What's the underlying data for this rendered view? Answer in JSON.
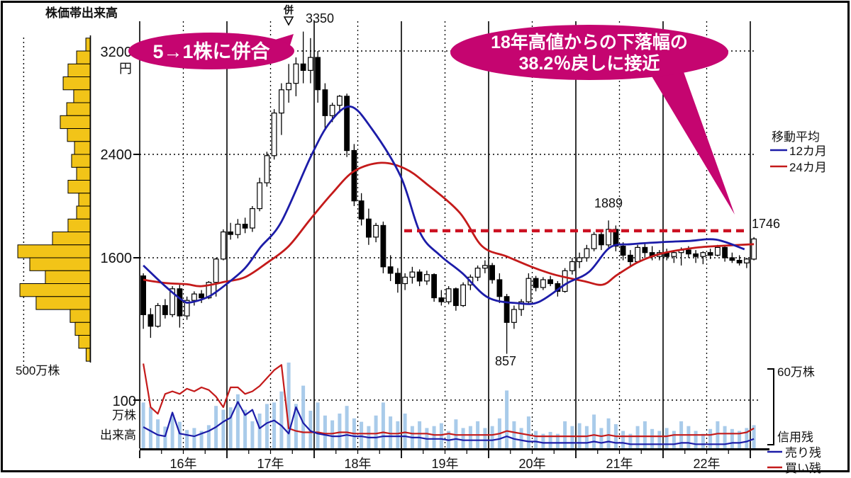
{
  "header": {
    "histogram_title": "株価帯出来高",
    "histogram_scale_label": "500万株"
  },
  "price_axis": {
    "label_3200": "3200",
    "unit": "円",
    "label_2400": "2400",
    "label_1600": "1600"
  },
  "callouts": {
    "merger": "5→1株に併合",
    "merger_marker": "併",
    "retrace_line1": "18年高値からの下落幅の",
    "retrace_line2": "38.2％戻しに接近"
  },
  "point_labels": {
    "high": "3350",
    "interim_high": "1889",
    "last": "1746",
    "low": "857"
  },
  "ma_legend": {
    "title": "移動平均",
    "ma12": "12カ月",
    "ma24": "24カ月"
  },
  "volume_labels": {
    "scale_value": "100",
    "scale_unit": "万株",
    "series": "出来高"
  },
  "margin_legend": {
    "scale": "60万株",
    "title": "信用残",
    "sell": "売り残",
    "buy": "買い残"
  },
  "x_axis": {
    "years": [
      "16年",
      "17年",
      "18年",
      "19年",
      "20年",
      "21年",
      "22年"
    ]
  },
  "chart_data": {
    "type": "candlestick+volume",
    "period": "monthly",
    "start_month": "2016-01",
    "end_month": "2023-01",
    "price_unit": "円",
    "price_gridlines": [
      3200,
      2400,
      1600
    ],
    "notable_points": {
      "high": {
        "month": "2017-11",
        "price": 3350
      },
      "low": {
        "month": "2020-03",
        "price": 857
      },
      "interim_high": {
        "month": "2021-05",
        "price": 1889
      },
      "last_close": {
        "price": 1746
      }
    },
    "merger_event": {
      "month": "2017-09",
      "label": "併",
      "note": "5→1株に併合"
    },
    "retracement_line": {
      "price": 1809,
      "note": "38.2%戻し (857 + 0.382 × (3350 − 857))"
    },
    "candles_ohlc": [
      [
        1460,
        1480,
        1050,
        1160
      ],
      [
        1160,
        1210,
        980,
        1070
      ],
      [
        1070,
        1250,
        1060,
        1230
      ],
      [
        1230,
        1280,
        1130,
        1160
      ],
      [
        1160,
        1380,
        1140,
        1360
      ],
      [
        1360,
        1390,
        1060,
        1150
      ],
      [
        1150,
        1300,
        1120,
        1270
      ],
      [
        1270,
        1340,
        1230,
        1320
      ],
      [
        1320,
        1350,
        1250,
        1290
      ],
      [
        1290,
        1420,
        1280,
        1410
      ],
      [
        1410,
        1600,
        1300,
        1590
      ],
      [
        1590,
        1820,
        1580,
        1800
      ],
      [
        1800,
        1870,
        1740,
        1780
      ],
      [
        1780,
        1900,
        1750,
        1860
      ],
      [
        1860,
        1910,
        1790,
        1830
      ],
      [
        1830,
        2000,
        1800,
        1980
      ],
      [
        1980,
        2220,
        1960,
        2180
      ],
      [
        2180,
        2420,
        2150,
        2390
      ],
      [
        2390,
        2750,
        2360,
        2720
      ],
      [
        2720,
        2950,
        2550,
        2900
      ],
      [
        2900,
        3100,
        2800,
        2950
      ],
      [
        2950,
        3150,
        2850,
        3100
      ],
      [
        3100,
        3350,
        2950,
        3050
      ],
      [
        3050,
        3300,
        2950,
        3150
      ],
      [
        3150,
        3200,
        2800,
        2900
      ],
      [
        2900,
        2950,
        2600,
        2700
      ],
      [
        2700,
        2800,
        2650,
        2780
      ],
      [
        2780,
        2860,
        2720,
        2850
      ],
      [
        2850,
        2870,
        2380,
        2430
      ],
      [
        2430,
        2480,
        2000,
        2040
      ],
      [
        2040,
        2100,
        1850,
        1900
      ],
      [
        1900,
        1980,
        1700,
        1760
      ],
      [
        1760,
        1870,
        1720,
        1850
      ],
      [
        1850,
        1880,
        1480,
        1530
      ],
      [
        1530,
        1620,
        1420,
        1480
      ],
      [
        1480,
        1520,
        1330,
        1400
      ],
      [
        1400,
        1480,
        1350,
        1450
      ],
      [
        1450,
        1530,
        1400,
        1490
      ],
      [
        1490,
        1510,
        1380,
        1420
      ],
      [
        1420,
        1500,
        1390,
        1470
      ],
      [
        1470,
        1480,
        1260,
        1290
      ],
      [
        1290,
        1350,
        1230,
        1260
      ],
      [
        1260,
        1380,
        1240,
        1360
      ],
      [
        1360,
        1370,
        1190,
        1230
      ],
      [
        1230,
        1410,
        1220,
        1390
      ],
      [
        1390,
        1470,
        1350,
        1450
      ],
      [
        1450,
        1540,
        1420,
        1520
      ],
      [
        1520,
        1580,
        1480,
        1540
      ],
      [
        1540,
        1560,
        1400,
        1430
      ],
      [
        1430,
        1480,
        1250,
        1300
      ],
      [
        1300,
        1320,
        857,
        1100
      ],
      [
        1100,
        1230,
        1050,
        1200
      ],
      [
        1200,
        1280,
        1150,
        1260
      ],
      [
        1260,
        1480,
        1240,
        1440
      ],
      [
        1440,
        1460,
        1340,
        1370
      ],
      [
        1370,
        1450,
        1350,
        1430
      ],
      [
        1430,
        1460,
        1380,
        1400
      ],
      [
        1400,
        1420,
        1300,
        1340
      ],
      [
        1340,
        1520,
        1330,
        1500
      ],
      [
        1500,
        1600,
        1470,
        1570
      ],
      [
        1570,
        1640,
        1520,
        1600
      ],
      [
        1600,
        1700,
        1570,
        1670
      ],
      [
        1670,
        1800,
        1650,
        1780
      ],
      [
        1780,
        1810,
        1660,
        1700
      ],
      [
        1700,
        1889,
        1680,
        1820
      ],
      [
        1820,
        1850,
        1650,
        1690
      ],
      [
        1690,
        1720,
        1580,
        1620
      ],
      [
        1620,
        1660,
        1530,
        1570
      ],
      [
        1570,
        1700,
        1560,
        1680
      ],
      [
        1680,
        1710,
        1600,
        1640
      ],
      [
        1640,
        1690,
        1580,
        1610
      ],
      [
        1610,
        1660,
        1580,
        1640
      ],
      [
        1640,
        1670,
        1580,
        1610
      ],
      [
        1610,
        1660,
        1560,
        1640
      ],
      [
        1640,
        1680,
        1540,
        1660
      ],
      [
        1660,
        1690,
        1600,
        1630
      ],
      [
        1630,
        1660,
        1560,
        1610
      ],
      [
        1610,
        1650,
        1550,
        1640
      ],
      [
        1640,
        1670,
        1590,
        1620
      ],
      [
        1620,
        1700,
        1610,
        1680
      ],
      [
        1680,
        1700,
        1570,
        1600
      ],
      [
        1600,
        1640,
        1560,
        1580
      ],
      [
        1580,
        1620,
        1540,
        1560
      ],
      [
        1560,
        1600,
        1520,
        1590
      ],
      [
        1590,
        1760,
        1580,
        1746
      ]
    ],
    "volume_man": [
      95,
      85,
      60,
      45,
      70,
      55,
      38,
      42,
      36,
      48,
      88,
      80,
      85,
      112,
      80,
      56,
      72,
      92,
      95,
      118,
      178,
      92,
      130,
      78,
      95,
      68,
      58,
      72,
      88,
      62,
      55,
      46,
      68,
      95,
      66,
      56,
      72,
      46,
      56,
      42,
      46,
      52,
      36,
      60,
      42,
      46,
      56,
      42,
      46,
      62,
      120,
      56,
      42,
      66,
      36,
      30,
      34,
      30,
      56,
      46,
      52,
      46,
      70,
      42,
      62,
      50,
      36,
      30,
      46,
      56,
      40,
      36,
      42,
      36,
      56,
      46,
      36,
      30,
      40,
      56,
      46,
      40,
      36,
      42,
      48
    ],
    "margin_buy_man": [
      63,
      30,
      25,
      40,
      42,
      40,
      44,
      42,
      45,
      43,
      38,
      30,
      45,
      45,
      40,
      42,
      46,
      52,
      58,
      62,
      14,
      12,
      11,
      11,
      11,
      10,
      10,
      11,
      11,
      10,
      10,
      10,
      10,
      11,
      10,
      10,
      11,
      10,
      10,
      10,
      9,
      9,
      10,
      9,
      9,
      9,
      9,
      9,
      9,
      10,
      12,
      11,
      10,
      9,
      8,
      8,
      8,
      8,
      8,
      8,
      8,
      8,
      9,
      8,
      9,
      8,
      8,
      8,
      8,
      8,
      8,
      8,
      8,
      9,
      9,
      9,
      9,
      9,
      9,
      10,
      10,
      10,
      10,
      11,
      14
    ],
    "margin_sell_man": [
      15,
      12,
      9,
      8,
      26,
      10,
      9,
      8,
      10,
      12,
      15,
      19,
      22,
      34,
      24,
      28,
      14,
      18,
      20,
      16,
      10,
      30,
      18,
      12,
      10,
      9,
      8,
      8,
      9,
      8,
      8,
      7,
      7,
      8,
      8,
      8,
      8,
      7,
      7,
      6,
      6,
      6,
      5,
      6,
      5,
      5,
      5,
      5,
      5,
      6,
      8,
      6,
      5,
      4,
      4,
      3,
      3,
      3,
      3,
      3,
      3,
      3,
      4,
      3,
      4,
      3,
      3,
      2,
      2,
      2,
      2,
      2,
      2,
      2,
      3,
      3,
      2,
      2,
      2,
      2,
      2,
      3,
      3,
      4,
      6
    ],
    "ma12_points": [
      [
        0,
        1540
      ],
      [
        3,
        1380
      ],
      [
        5.4,
        1270
      ],
      [
        6.5,
        1255
      ],
      [
        9,
        1300
      ],
      [
        11.3,
        1390
      ],
      [
        14,
        1520
      ],
      [
        16.1,
        1680
      ],
      [
        19,
        1880
      ],
      [
        23.1,
        2390
      ],
      [
        25.7,
        2650
      ],
      [
        28.5,
        2770
      ],
      [
        31.4,
        2600
      ],
      [
        35.4,
        2230
      ],
      [
        38.1,
        1790
      ],
      [
        40.8,
        1620
      ],
      [
        43.9,
        1480
      ],
      [
        47.4,
        1293
      ],
      [
        51.5,
        1249
      ],
      [
        54.4,
        1258
      ],
      [
        58.2,
        1400
      ],
      [
        61.3,
        1490
      ],
      [
        64.2,
        1680
      ],
      [
        67.1,
        1705
      ],
      [
        71,
        1720
      ],
      [
        75,
        1730
      ],
      [
        78.8,
        1740
      ],
      [
        82.7,
        1666
      ]
    ],
    "ma24_points": [
      [
        0,
        1430
      ],
      [
        3,
        1405
      ],
      [
        6,
        1395
      ],
      [
        8,
        1380
      ],
      [
        11.3,
        1415
      ],
      [
        14,
        1450
      ],
      [
        17,
        1560
      ],
      [
        20,
        1690
      ],
      [
        23,
        1900
      ],
      [
        26,
        2100
      ],
      [
        29,
        2270
      ],
      [
        32.7,
        2335
      ],
      [
        36,
        2290
      ],
      [
        39,
        2170
      ],
      [
        43.5,
        1950
      ],
      [
        46.6,
        1690
      ],
      [
        50,
        1610
      ],
      [
        53.4,
        1530
      ],
      [
        56.5,
        1470
      ],
      [
        60.6,
        1419
      ],
      [
        63.2,
        1392
      ],
      [
        65.2,
        1468
      ],
      [
        68.1,
        1567
      ],
      [
        71.3,
        1633
      ],
      [
        75.9,
        1677
      ],
      [
        79.8,
        1693
      ],
      [
        84,
        1705
      ]
    ],
    "price_band_volume": {
      "top_price": 3300,
      "bucket_yen": 100,
      "scale_man": 500,
      "lengths_man": [
        32,
        102,
        167,
        204,
        124,
        177,
        226,
        172,
        118,
        140,
        102,
        167,
        86,
        102,
        167,
        285,
        548,
        457,
        339,
        532,
        409,
        151,
        113,
        86,
        30
      ]
    },
    "volume_axis": {
      "scale_man": 100
    },
    "margin_axis": {
      "scale_man": 60
    },
    "colors": {
      "up_candle": "#ffffff",
      "down_candle": "#000000",
      "ma12": "#1C1CA8",
      "ma24": "#C41A1A",
      "volume_bar": "#A9CBEA",
      "margin_sell": "#1C1CA8",
      "margin_buy": "#C41A1A",
      "histogram": "#F2C418",
      "callout": "#C50570",
      "retracement": "#CC1122",
      "histogram_title": "#DFAE00"
    }
  }
}
